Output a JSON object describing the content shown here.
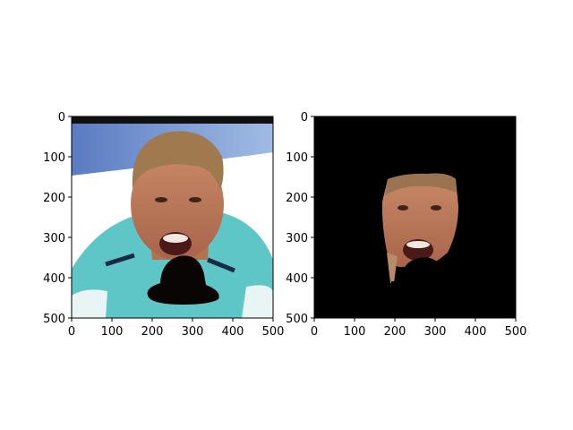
{
  "chart_data": [
    {
      "type": "image",
      "title": "",
      "xlabel": "",
      "ylabel": "",
      "xlim": [
        0,
        500
      ],
      "ylim": [
        500,
        0
      ],
      "x_ticks": [
        0,
        100,
        200,
        300,
        400,
        500
      ],
      "y_ticks": [
        0,
        100,
        200,
        300,
        400,
        500
      ],
      "x_tick_labels": [
        "0",
        "100",
        "200",
        "300",
        "400",
        "500"
      ],
      "y_tick_labels": [
        "0",
        "100",
        "200",
        "300",
        "400",
        "500"
      ],
      "grid": false,
      "content": "photo of a cyclist in a teal jersey with an occlusion mask shape over the mouth and chin",
      "background_color": "#ffffff",
      "jersey_color": "#5fc6c8",
      "mask_color": "#0a0505"
    },
    {
      "type": "image",
      "title": "",
      "xlabel": "",
      "ylabel": "",
      "xlim": [
        0,
        500
      ],
      "ylim": [
        500,
        0
      ],
      "x_ticks": [
        0,
        100,
        200,
        300,
        400,
        500
      ],
      "y_ticks": [
        0,
        100,
        200,
        300,
        400,
        500
      ],
      "x_tick_labels": [
        "0",
        "100",
        "200",
        "300",
        "400",
        "500"
      ],
      "y_tick_labels": [
        "0",
        "100",
        "200",
        "300",
        "400",
        "500"
      ],
      "grid": false,
      "content": "segmented face region on black background with occlusion removed",
      "background_color": "#000000",
      "mask_color": "#000000"
    }
  ]
}
